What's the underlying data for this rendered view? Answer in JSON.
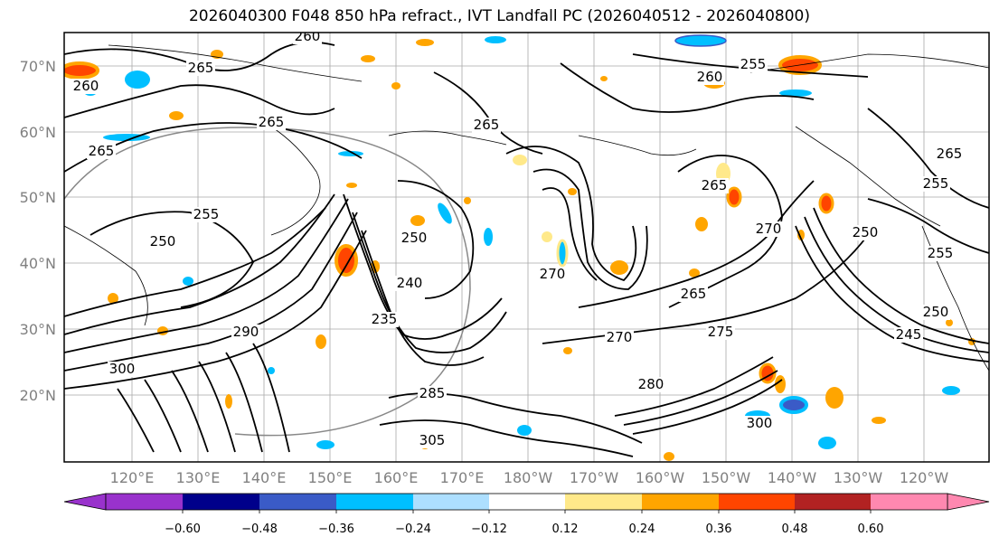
{
  "title": "2026040300 F048 850 hPa refract., IVT Landfall PC (2026040512 - 2026040800)",
  "lat_labels": [
    "70°N",
    "60°N",
    "50°N",
    "40°N",
    "30°N",
    "20°N"
  ],
  "lon_labels": [
    "120°E",
    "130°E",
    "140°E",
    "150°E",
    "160°E",
    "170°E",
    "180°W",
    "170°W",
    "160°W",
    "150°W",
    "140°W",
    "130°W",
    "120°W"
  ],
  "colorbar": {
    "colors": [
      "#9932CC",
      "#00008B",
      "#3A5BC7",
      "#00BFFF",
      "#ADDFFF",
      "#FFFFFF",
      "#FFE98A",
      "#FFA500",
      "#FF4500",
      "#B22222",
      "#FF88B0"
    ],
    "tick_labels": [
      "−0.60",
      "−0.48",
      "−0.36",
      "−0.24",
      "−0.12",
      "0.12",
      "0.24",
      "0.36",
      "0.48",
      "0.60"
    ]
  },
  "contour_labels": [
    "265",
    "260",
    "255",
    "260",
    "265",
    "265",
    "260",
    "265",
    "265",
    "255",
    "255",
    "250",
    "250",
    "240",
    "235",
    "270",
    "265",
    "270",
    "275",
    "250",
    "255",
    "250",
    "245",
    "290",
    "300",
    "285",
    "305",
    "280",
    "270",
    "300",
    "265"
  ]
}
